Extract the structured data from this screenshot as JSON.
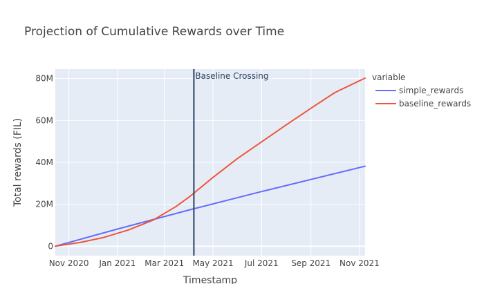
{
  "chart_data": {
    "type": "line",
    "title": "Projection of Cumulative Rewards over Time",
    "xlabel": "Timestamp",
    "ylabel": "Total rewards (FIL)",
    "x_ticks": [
      {
        "date": "2020-11-01",
        "label": "Nov 2020"
      },
      {
        "date": "2021-01-01",
        "label": "Jan 2021"
      },
      {
        "date": "2021-03-01",
        "label": "Mar 2021"
      },
      {
        "date": "2021-05-01",
        "label": "May 2021"
      },
      {
        "date": "2021-07-01",
        "label": "Jul 2021"
      },
      {
        "date": "2021-09-01",
        "label": "Sep 2021"
      },
      {
        "date": "2021-11-01",
        "label": "Nov 2021"
      }
    ],
    "y_ticks": [
      {
        "value": 0,
        "label": "0"
      },
      {
        "value": 20000000,
        "label": "20M"
      },
      {
        "value": 40000000,
        "label": "40M"
      },
      {
        "value": 60000000,
        "label": "60M"
      },
      {
        "value": 80000000,
        "label": "80M"
      }
    ],
    "xlim": [
      "2020-10-15",
      "2021-11-08"
    ],
    "ylim": [
      -4500000,
      84500000
    ],
    "grid": true,
    "legend": {
      "title": "variable",
      "placement": "right"
    },
    "series": [
      {
        "name": "simple_rewards",
        "color": "#636efa",
        "points": [
          {
            "x": "2020-10-15",
            "y": 0
          },
          {
            "x": "2021-01-01",
            "y": 8200000
          },
          {
            "x": "2021-04-01",
            "y": 17300000
          },
          {
            "x": "2021-07-01",
            "y": 26100000
          },
          {
            "x": "2021-11-08",
            "y": 38200000
          }
        ]
      },
      {
        "name": "baseline_rewards",
        "color": "#ef553b",
        "points": [
          {
            "x": "2020-10-15",
            "y": 0
          },
          {
            "x": "2020-11-15",
            "y": 1800000
          },
          {
            "x": "2020-12-15",
            "y": 4200000
          },
          {
            "x": "2021-01-15",
            "y": 7800000
          },
          {
            "x": "2021-02-15",
            "y": 12500000
          },
          {
            "x": "2021-03-15",
            "y": 18800000
          },
          {
            "x": "2021-04-01",
            "y": 23500000
          },
          {
            "x": "2021-05-01",
            "y": 32800000
          },
          {
            "x": "2021-06-01",
            "y": 41900000
          },
          {
            "x": "2021-07-01",
            "y": 49800000
          },
          {
            "x": "2021-08-01",
            "y": 57900000
          },
          {
            "x": "2021-09-01",
            "y": 65800000
          },
          {
            "x": "2021-10-01",
            "y": 73300000
          },
          {
            "x": "2021-11-08",
            "y": 80200000
          }
        ]
      }
    ],
    "annotations": [
      {
        "type": "vline",
        "x": "2021-04-07",
        "label": "Baseline Crossing",
        "color": "#2a3f5f"
      }
    ]
  }
}
